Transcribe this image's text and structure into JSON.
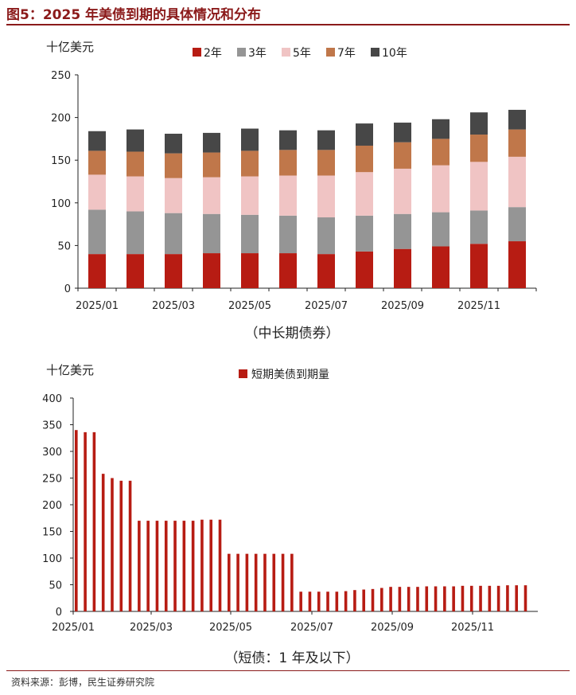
{
  "title": "图5：2025 年美债到期的具体情况和分布",
  "source": "资料来源：彭博，民生证券研究院",
  "chart_data": [
    {
      "type": "bar",
      "stacked": true,
      "unit_label": "十亿美元",
      "caption": "（中长期债券）",
      "legend_position": "top",
      "ylim": [
        0,
        250
      ],
      "yticks": [
        0,
        50,
        100,
        150,
        200,
        250
      ],
      "xtick_labels": [
        "2025/01",
        "2025/03",
        "2025/05",
        "2025/07",
        "2025/09",
        "2025/11"
      ],
      "categories": [
        "2025/01",
        "2025/02",
        "2025/03",
        "2025/04",
        "2025/05",
        "2025/06",
        "2025/07",
        "2025/08",
        "2025/09",
        "2025/10",
        "2025/11",
        "2025/12"
      ],
      "series": [
        {
          "name": "2年",
          "color": "#b71c13",
          "values": [
            40,
            40,
            40,
            41,
            41,
            41,
            40,
            43,
            46,
            49,
            52,
            55
          ]
        },
        {
          "name": "3年",
          "color": "#959595",
          "values": [
            52,
            50,
            48,
            46,
            45,
            44,
            43,
            42,
            41,
            40,
            39,
            40
          ]
        },
        {
          "name": "5年",
          "color": "#f0c4c4",
          "values": [
            41,
            41,
            41,
            43,
            45,
            47,
            49,
            51,
            53,
            55,
            57,
            59
          ]
        },
        {
          "name": "7年",
          "color": "#c0774a",
          "values": [
            28,
            29,
            29,
            29,
            30,
            30,
            30,
            31,
            31,
            31,
            32,
            32
          ]
        },
        {
          "name": "10年",
          "color": "#474747",
          "values": [
            23,
            26,
            23,
            23,
            26,
            23,
            23,
            26,
            23,
            23,
            26,
            23
          ]
        }
      ]
    },
    {
      "type": "bar",
      "unit_label": "十亿美元",
      "caption": "（短债：1 年及以下）",
      "legend_position": "top",
      "ylim": [
        0,
        400
      ],
      "yticks": [
        0,
        50,
        100,
        150,
        200,
        250,
        300,
        350,
        400
      ],
      "xtick_labels": [
        "2025/01",
        "2025/03",
        "2025/05",
        "2025/07",
        "2025/09",
        "2025/11"
      ],
      "series": [
        {
          "name": "短期美债到期量",
          "color": "#b71c13",
          "values": [
            340,
            336,
            336,
            258,
            250,
            245,
            245,
            170,
            170,
            170,
            170,
            170,
            170,
            170,
            172,
            172,
            172,
            108,
            108,
            108,
            108,
            108,
            108,
            108,
            108,
            37,
            37,
            37,
            37,
            37,
            38,
            40,
            41,
            42,
            44,
            46,
            46,
            46,
            46,
            47,
            47,
            47,
            47,
            48,
            48,
            48,
            48,
            48,
            49,
            49,
            49
          ]
        }
      ]
    }
  ]
}
